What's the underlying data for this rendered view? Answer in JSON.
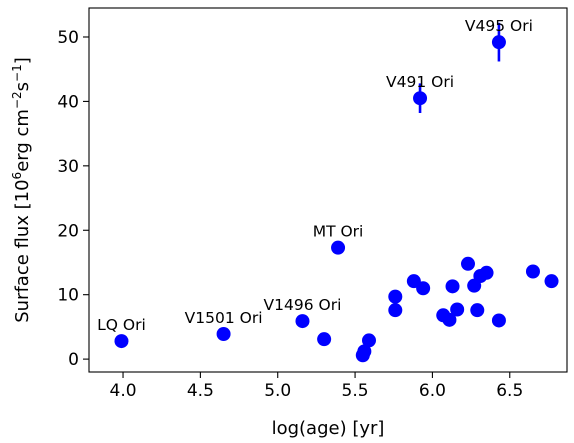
{
  "chart_data": {
    "type": "scatter",
    "xlabel": "log(age) [yr]",
    "ylabel": {
      "prefix": "Surface flux [10",
      "sup1": "6",
      "mid1": "erg cm",
      "sup2": "−2",
      "mid2": "s",
      "sup3": "−1",
      "suffix": "]"
    },
    "xlim": [
      3.78,
      6.87
    ],
    "ylim": [
      -2,
      54.5
    ],
    "xticks": [
      4.0,
      4.5,
      5.0,
      5.5,
      6.0,
      6.5
    ],
    "xtick_labels": [
      "4.0",
      "4.5",
      "5.0",
      "5.5",
      "6.0",
      "6.5"
    ],
    "yticks": [
      0,
      10,
      20,
      30,
      40,
      50
    ],
    "ytick_labels": [
      "0",
      "10",
      "20",
      "30",
      "40",
      "50"
    ],
    "grid": false,
    "marker_color": "#0000ff",
    "points": [
      {
        "x": 3.99,
        "y": 2.8,
        "label": "LQ Ori"
      },
      {
        "x": 4.65,
        "y": 3.9,
        "label": "V1501 Ori"
      },
      {
        "x": 5.16,
        "y": 5.9,
        "label": "V1496 Ori"
      },
      {
        "x": 5.39,
        "y": 17.3,
        "label": "MT Ori"
      },
      {
        "x": 5.92,
        "y": 40.5,
        "label": "V491 Ori",
        "yerr": 2.3
      },
      {
        "x": 6.43,
        "y": 49.2,
        "label": "V495 Ori",
        "yerr": 3.0
      },
      {
        "x": 5.3,
        "y": 3.1
      },
      {
        "x": 5.55,
        "y": 0.6
      },
      {
        "x": 5.56,
        "y": 1.2
      },
      {
        "x": 5.59,
        "y": 2.9
      },
      {
        "x": 5.76,
        "y": 7.6
      },
      {
        "x": 5.76,
        "y": 9.7
      },
      {
        "x": 5.88,
        "y": 12.1
      },
      {
        "x": 5.94,
        "y": 11.0
      },
      {
        "x": 6.07,
        "y": 6.8
      },
      {
        "x": 6.11,
        "y": 6.1
      },
      {
        "x": 6.13,
        "y": 11.3
      },
      {
        "x": 6.16,
        "y": 7.7
      },
      {
        "x": 6.23,
        "y": 14.8
      },
      {
        "x": 6.27,
        "y": 11.4
      },
      {
        "x": 6.29,
        "y": 7.6
      },
      {
        "x": 6.31,
        "y": 12.9
      },
      {
        "x": 6.35,
        "y": 13.4
      },
      {
        "x": 6.43,
        "y": 6.0
      },
      {
        "x": 6.65,
        "y": 13.6
      },
      {
        "x": 6.77,
        "y": 12.1
      }
    ]
  }
}
